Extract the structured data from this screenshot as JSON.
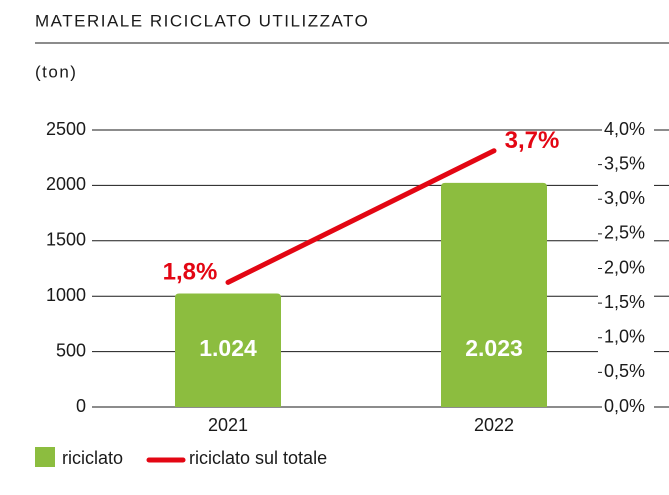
{
  "chart_data": {
    "type": "bar",
    "title": "MATERIALE RICICLATO UTILIZZATO",
    "y_label": "(ton)",
    "categories": [
      "2021",
      "2022"
    ],
    "series": [
      {
        "name": "riciclato",
        "type": "bar",
        "color": "#8cbd3f",
        "values": [
          1024,
          2023
        ],
        "value_labels": [
          "1.024",
          "2.023"
        ]
      },
      {
        "name": "riciclato sul totale",
        "type": "line",
        "axis": "y2",
        "color": "#e30613",
        "values": [
          1.8,
          3.7
        ],
        "value_labels": [
          "1,8%",
          "3,7%"
        ]
      }
    ],
    "ylim": [
      0,
      2500
    ],
    "yticks": [
      0,
      500,
      1000,
      1500,
      2000,
      2500
    ],
    "y2lim": [
      0,
      4
    ],
    "y2ticks": [
      {
        "value": 0,
        "label": "0,0%"
      },
      {
        "value": 0.5,
        "label": "0,5%"
      },
      {
        "value": 1,
        "label": "1,0%"
      },
      {
        "value": 1.5,
        "label": "1,5%"
      },
      {
        "value": 2,
        "label": "2,0%"
      },
      {
        "value": 2.5,
        "label": "2,5%"
      },
      {
        "value": 3,
        "label": "3,0%"
      },
      {
        "value": 3.5,
        "label": "3,5%"
      },
      {
        "value": 4,
        "label": "4,0%"
      }
    ],
    "grid": true,
    "legend": "bottom"
  }
}
